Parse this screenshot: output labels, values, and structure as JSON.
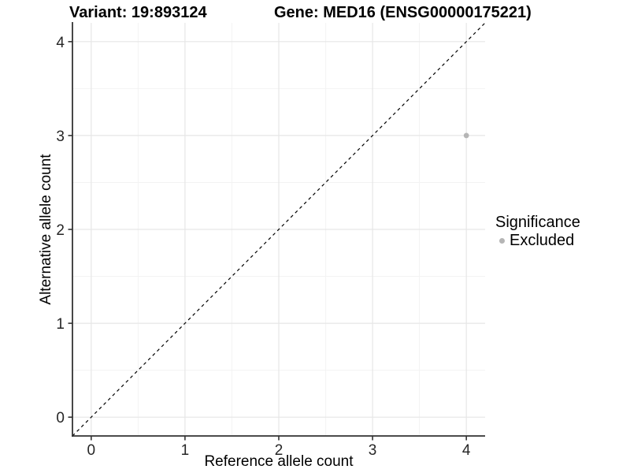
{
  "titles": {
    "variant": "Variant: 19:893124",
    "gene": "Gene: MED16 (ENSG00000175221)"
  },
  "chart_data": {
    "type": "scatter",
    "xlabel": "Reference allele count",
    "ylabel": "Alternative allele count",
    "xlim": [
      -0.2,
      4.2
    ],
    "ylim": [
      -0.2,
      4.2
    ],
    "x_ticks": [
      0,
      1,
      2,
      3,
      4
    ],
    "y_ticks": [
      0,
      1,
      2,
      3,
      4
    ],
    "x_tick_labels": [
      "0",
      "1",
      "2",
      "3",
      "4"
    ],
    "y_tick_labels": [
      "0",
      "1",
      "2",
      "3",
      "4"
    ],
    "grid": {
      "major": true,
      "minor": true
    },
    "series": [
      {
        "name": "Excluded",
        "points": [
          {
            "x": 4,
            "y": 3
          }
        ],
        "color": "#b5b5b5"
      }
    ],
    "reference_line": {
      "style": "dashed",
      "slope": 1,
      "intercept": 0,
      "color": "#000000"
    },
    "legend": {
      "title": "Significance",
      "position": "right",
      "items": [
        {
          "label": "Excluded",
          "color": "#b5b5b5"
        }
      ]
    },
    "colors": {
      "background": "#ffffff",
      "axis_line": "#333333",
      "tick_mark": "#333333",
      "tick_label": "#262626",
      "grid_major": "#e6e6e6",
      "grid_minor": "#f3f3f3",
      "point": "#b5b5b5",
      "reference_line": "#000000"
    },
    "point_radius_px": 3.4
  }
}
